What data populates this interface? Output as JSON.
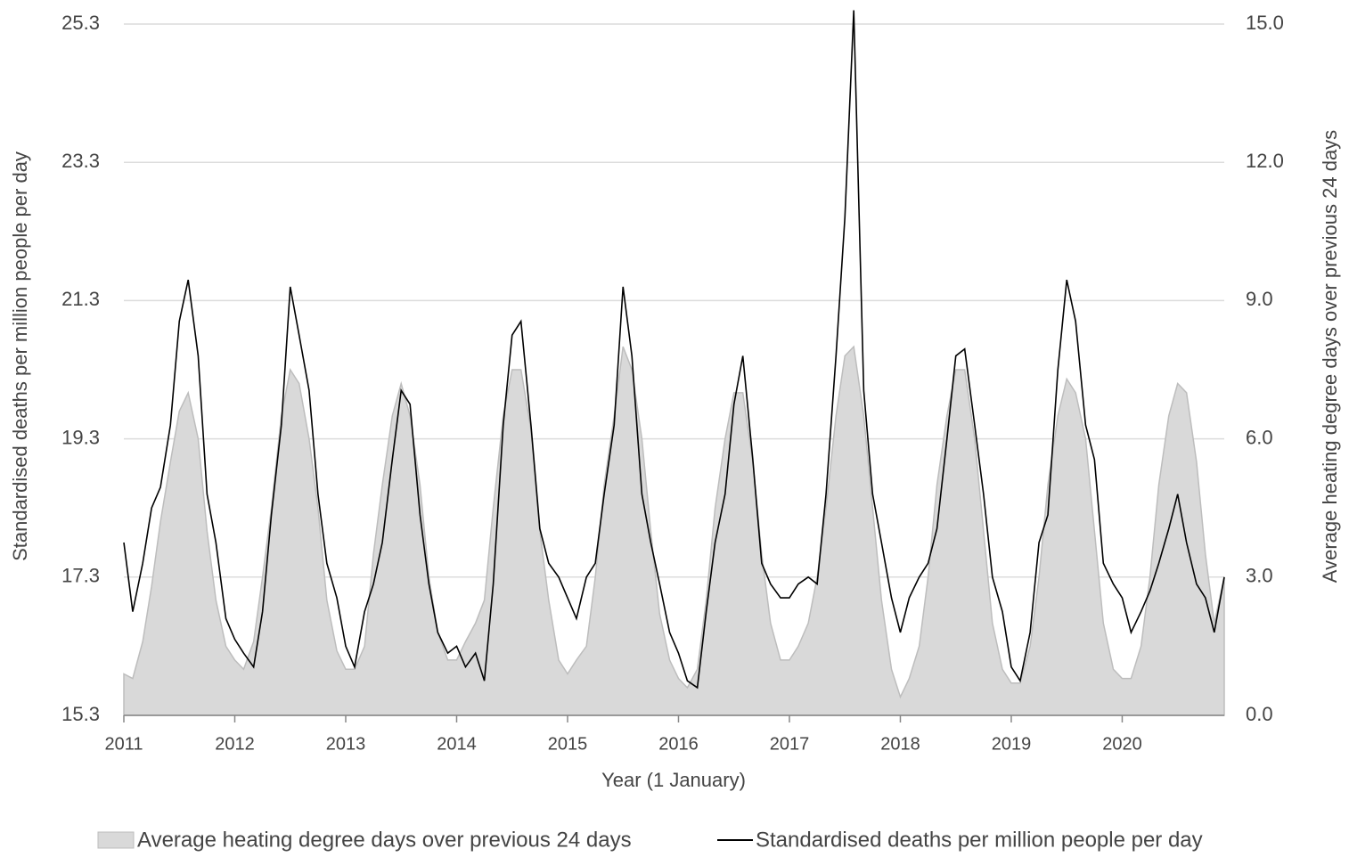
{
  "chart_data": {
    "type": "line",
    "y_label": "Standardised deaths per million people per day",
    "y2_label": "Average heating degree days over previous 24 days",
    "x_label": "Year (1 January)",
    "x": [
      2011,
      2011.08,
      2011.17,
      2011.25,
      2011.33,
      2011.42,
      2011.5,
      2011.58,
      2011.67,
      2011.75,
      2011.83,
      2011.92,
      2012,
      2012.08,
      2012.17,
      2012.25,
      2012.33,
      2012.42,
      2012.5,
      2012.58,
      2012.67,
      2012.75,
      2012.83,
      2012.92,
      2013,
      2013.08,
      2013.17,
      2013.25,
      2013.33,
      2013.42,
      2013.5,
      2013.58,
      2013.67,
      2013.75,
      2013.83,
      2013.92,
      2014,
      2014.08,
      2014.17,
      2014.25,
      2014.33,
      2014.42,
      2014.5,
      2014.58,
      2014.67,
      2014.75,
      2014.83,
      2014.92,
      2015,
      2015.08,
      2015.17,
      2015.25,
      2015.33,
      2015.42,
      2015.5,
      2015.58,
      2015.67,
      2015.75,
      2015.83,
      2015.92,
      2016,
      2016.08,
      2016.17,
      2016.25,
      2016.33,
      2016.42,
      2016.5,
      2016.58,
      2016.67,
      2016.75,
      2016.83,
      2016.92,
      2017,
      2017.08,
      2017.17,
      2017.25,
      2017.33,
      2017.42,
      2017.5,
      2017.58,
      2017.67,
      2017.75,
      2017.83,
      2017.92,
      2018,
      2018.08,
      2018.17,
      2018.25,
      2018.33,
      2018.42,
      2018.5,
      2018.58,
      2018.67,
      2018.75,
      2018.83,
      2018.92,
      2019,
      2019.08,
      2019.17,
      2019.25,
      2019.33,
      2019.42,
      2019.5,
      2019.58,
      2019.67,
      2019.75,
      2019.83,
      2019.92,
      2020,
      2020.08,
      2020.17,
      2020.25,
      2020.33,
      2020.42,
      2020.5,
      2020.58,
      2020.67,
      2020.75,
      2020.83,
      2020.92
    ],
    "series": [
      {
        "name": "Average heating degree days over previous 24 days",
        "kind": "area",
        "axis": "y2",
        "color": "#d9d9d9",
        "edge_color": "#bdbdbd",
        "values": [
          0.9,
          0.8,
          1.6,
          2.8,
          4.2,
          5.5,
          6.6,
          7.0,
          6.0,
          4.0,
          2.5,
          1.5,
          1.2,
          1.0,
          1.6,
          3.0,
          4.5,
          6.5,
          7.5,
          7.2,
          6.0,
          4.5,
          2.5,
          1.4,
          1.0,
          1.0,
          1.5,
          3.5,
          5.0,
          6.5,
          7.2,
          6.5,
          5.0,
          3.0,
          1.8,
          1.2,
          1.2,
          1.6,
          2.0,
          2.5,
          4.5,
          6.5,
          7.5,
          7.5,
          6.2,
          4.0,
          2.5,
          1.2,
          0.9,
          1.2,
          1.5,
          3.0,
          5.0,
          6.5,
          8.0,
          7.5,
          6.0,
          4.0,
          2.2,
          1.2,
          0.8,
          0.6,
          1.0,
          2.5,
          4.5,
          6.0,
          7.0,
          7.0,
          5.5,
          3.5,
          2.0,
          1.2,
          1.2,
          1.5,
          2.0,
          3.0,
          4.5,
          6.5,
          7.8,
          8.0,
          6.5,
          4.5,
          2.5,
          1.0,
          0.4,
          0.8,
          1.5,
          3.0,
          5.0,
          6.5,
          7.5,
          7.5,
          6.0,
          4.0,
          2.0,
          1.0,
          0.7,
          0.7,
          1.5,
          3.0,
          5.0,
          6.5,
          7.3,
          7.0,
          6.0,
          4.0,
          2.0,
          1.0,
          0.8,
          0.8,
          1.5,
          3.0,
          5.0,
          6.5,
          7.2,
          7.0,
          5.5,
          3.5,
          2.0,
          3.0
        ]
      },
      {
        "name": "Standardised deaths per million people per day",
        "kind": "line",
        "color": "#000000",
        "values": [
          17.8,
          16.8,
          17.5,
          18.3,
          18.6,
          19.5,
          21.0,
          21.6,
          20.5,
          18.5,
          17.8,
          16.7,
          16.4,
          16.2,
          16.0,
          16.8,
          18.2,
          19.5,
          21.5,
          20.8,
          20.0,
          18.5,
          17.5,
          17.0,
          16.3,
          16.0,
          16.8,
          17.2,
          17.8,
          19.0,
          20.0,
          19.8,
          18.2,
          17.2,
          16.5,
          16.2,
          16.3,
          16.0,
          16.2,
          15.8,
          17.2,
          19.5,
          20.8,
          21.0,
          19.5,
          18.0,
          17.5,
          17.3,
          17.0,
          16.7,
          17.3,
          17.5,
          18.5,
          19.5,
          21.5,
          20.5,
          18.5,
          17.8,
          17.2,
          16.5,
          16.2,
          15.8,
          15.7,
          16.8,
          17.8,
          18.5,
          19.8,
          20.5,
          19.0,
          17.5,
          17.2,
          17.0,
          17.0,
          17.2,
          17.3,
          17.2,
          18.5,
          20.5,
          22.5,
          25.5,
          20.0,
          18.5,
          17.8,
          17.0,
          16.5,
          17.0,
          17.3,
          17.5,
          18.0,
          19.3,
          20.5,
          20.6,
          19.5,
          18.5,
          17.3,
          16.8,
          16.0,
          15.8,
          16.5,
          17.8,
          18.2,
          20.3,
          21.6,
          21.0,
          19.5,
          19.0,
          17.5,
          17.2,
          17.0,
          16.5,
          16.8,
          17.1,
          17.5,
          18.0,
          18.5,
          17.8,
          17.2,
          17.0,
          16.5,
          17.3
        ]
      }
    ],
    "xlim": [
      2011,
      2020.92
    ],
    "xticks": [
      2011,
      2012,
      2013,
      2014,
      2015,
      2016,
      2017,
      2018,
      2019,
      2020
    ],
    "ylim": [
      15.3,
      25.3
    ],
    "yticks": [
      15.3,
      17.3,
      19.3,
      21.3,
      23.3,
      25.3
    ],
    "y2lim": [
      0,
      15
    ],
    "y2ticks": [
      {
        "value": 0,
        "label": "0.0"
      },
      {
        "value": 3,
        "label": "3.0"
      },
      {
        "value": 6,
        "label": "6.0"
      },
      {
        "value": 9,
        "label": "9.0"
      },
      {
        "value": 12,
        "label": "12.0"
      },
      {
        "value": 15,
        "label": "15.0"
      }
    ],
    "grid": true,
    "legend": "bottom"
  }
}
